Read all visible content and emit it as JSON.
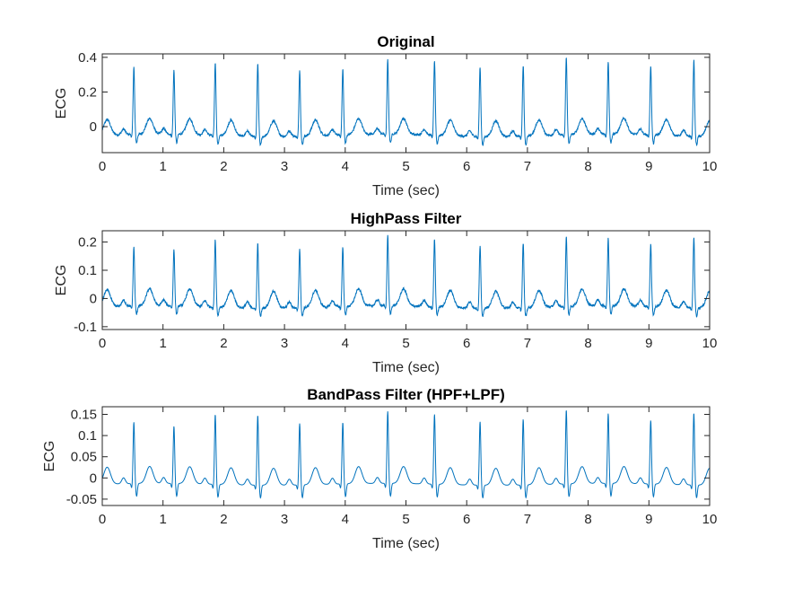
{
  "chart_data": [
    {
      "type": "line",
      "title": "Original",
      "xlabel": "Time (sec)",
      "ylabel": "ECG",
      "xlim": [
        0,
        10
      ],
      "ylim": [
        -0.15,
        0.42
      ],
      "xticks": [
        0,
        1,
        2,
        3,
        4,
        5,
        6,
        7,
        8,
        9,
        10
      ],
      "xtick_labels": [
        "0",
        "1",
        "2",
        "3",
        "4",
        "5",
        "6",
        "7",
        "8",
        "9",
        "10"
      ],
      "yticks": [
        0,
        0.2,
        0.4
      ],
      "ytick_labels": [
        "0",
        "0.2",
        "0.4"
      ],
      "color": "#0072BD",
      "grid": false,
      "series": [
        {
          "r_peak_times": [
            0.52,
            1.18,
            1.86,
            2.56,
            3.25,
            3.96,
            4.7,
            5.47,
            6.22,
            6.93,
            7.64,
            8.33,
            9.03,
            9.74
          ],
          "r_peak_values": [
            0.34,
            0.32,
            0.37,
            0.37,
            0.33,
            0.33,
            0.38,
            0.38,
            0.35,
            0.36,
            0.4,
            0.37,
            0.35,
            0.39
          ],
          "baseline": -0.05,
          "t_wave_peak": 0.04,
          "s_wave_min": -0.1,
          "noise_amplitude": 0.006
        }
      ]
    },
    {
      "type": "line",
      "title": "HighPass Filter",
      "xlabel": "Time (sec)",
      "ylabel": "ECG",
      "xlim": [
        0,
        10
      ],
      "ylim": [
        -0.11,
        0.24
      ],
      "xticks": [
        0,
        1,
        2,
        3,
        4,
        5,
        6,
        7,
        8,
        9,
        10
      ],
      "xtick_labels": [
        "0",
        "1",
        "2",
        "3",
        "4",
        "5",
        "6",
        "7",
        "8",
        "9",
        "10"
      ],
      "yticks": [
        -0.1,
        0,
        0.1,
        0.2
      ],
      "ytick_labels": [
        "-0.1",
        "0",
        "0.1",
        "0.2"
      ],
      "color": "#0072BD",
      "grid": false,
      "series": [
        {
          "r_peak_times": [
            0.52,
            1.18,
            1.86,
            2.56,
            3.25,
            3.96,
            4.7,
            5.47,
            6.22,
            6.93,
            7.64,
            8.33,
            9.03,
            9.74
          ],
          "r_peak_values": [
            0.18,
            0.17,
            0.21,
            0.2,
            0.18,
            0.18,
            0.22,
            0.21,
            0.19,
            0.2,
            0.22,
            0.21,
            0.19,
            0.22
          ],
          "baseline": -0.03,
          "t_wave_peak": 0.03,
          "s_wave_min": -0.06,
          "noise_amplitude": 0.004
        }
      ]
    },
    {
      "type": "line",
      "title": "BandPass Filter (HPF+LPF)",
      "xlabel": "Time (sec)",
      "ylabel": "ECG",
      "xlim": [
        0,
        10
      ],
      "ylim": [
        -0.065,
        0.168
      ],
      "xticks": [
        0,
        1,
        2,
        3,
        4,
        5,
        6,
        7,
        8,
        9,
        10
      ],
      "xtick_labels": [
        "0",
        "1",
        "2",
        "3",
        "4",
        "5",
        "6",
        "7",
        "8",
        "9",
        "10"
      ],
      "yticks": [
        -0.05,
        0,
        0.05,
        0.1,
        0.15
      ],
      "ytick_labels": [
        "-0.05",
        "0",
        "0.05",
        "0.1",
        "0.15"
      ],
      "color": "#0072BD",
      "grid": false,
      "series": [
        {
          "r_peak_times": [
            0.52,
            1.18,
            1.86,
            2.56,
            3.25,
            3.96,
            4.7,
            5.47,
            6.22,
            6.93,
            7.64,
            8.33,
            9.03,
            9.74
          ],
          "r_peak_values": [
            0.13,
            0.12,
            0.15,
            0.15,
            0.13,
            0.13,
            0.155,
            0.15,
            0.135,
            0.14,
            0.16,
            0.15,
            0.135,
            0.155
          ],
          "baseline": -0.015,
          "t_wave_peak": 0.025,
          "s_wave_min": -0.045,
          "noise_amplitude": 0.0
        }
      ]
    }
  ]
}
